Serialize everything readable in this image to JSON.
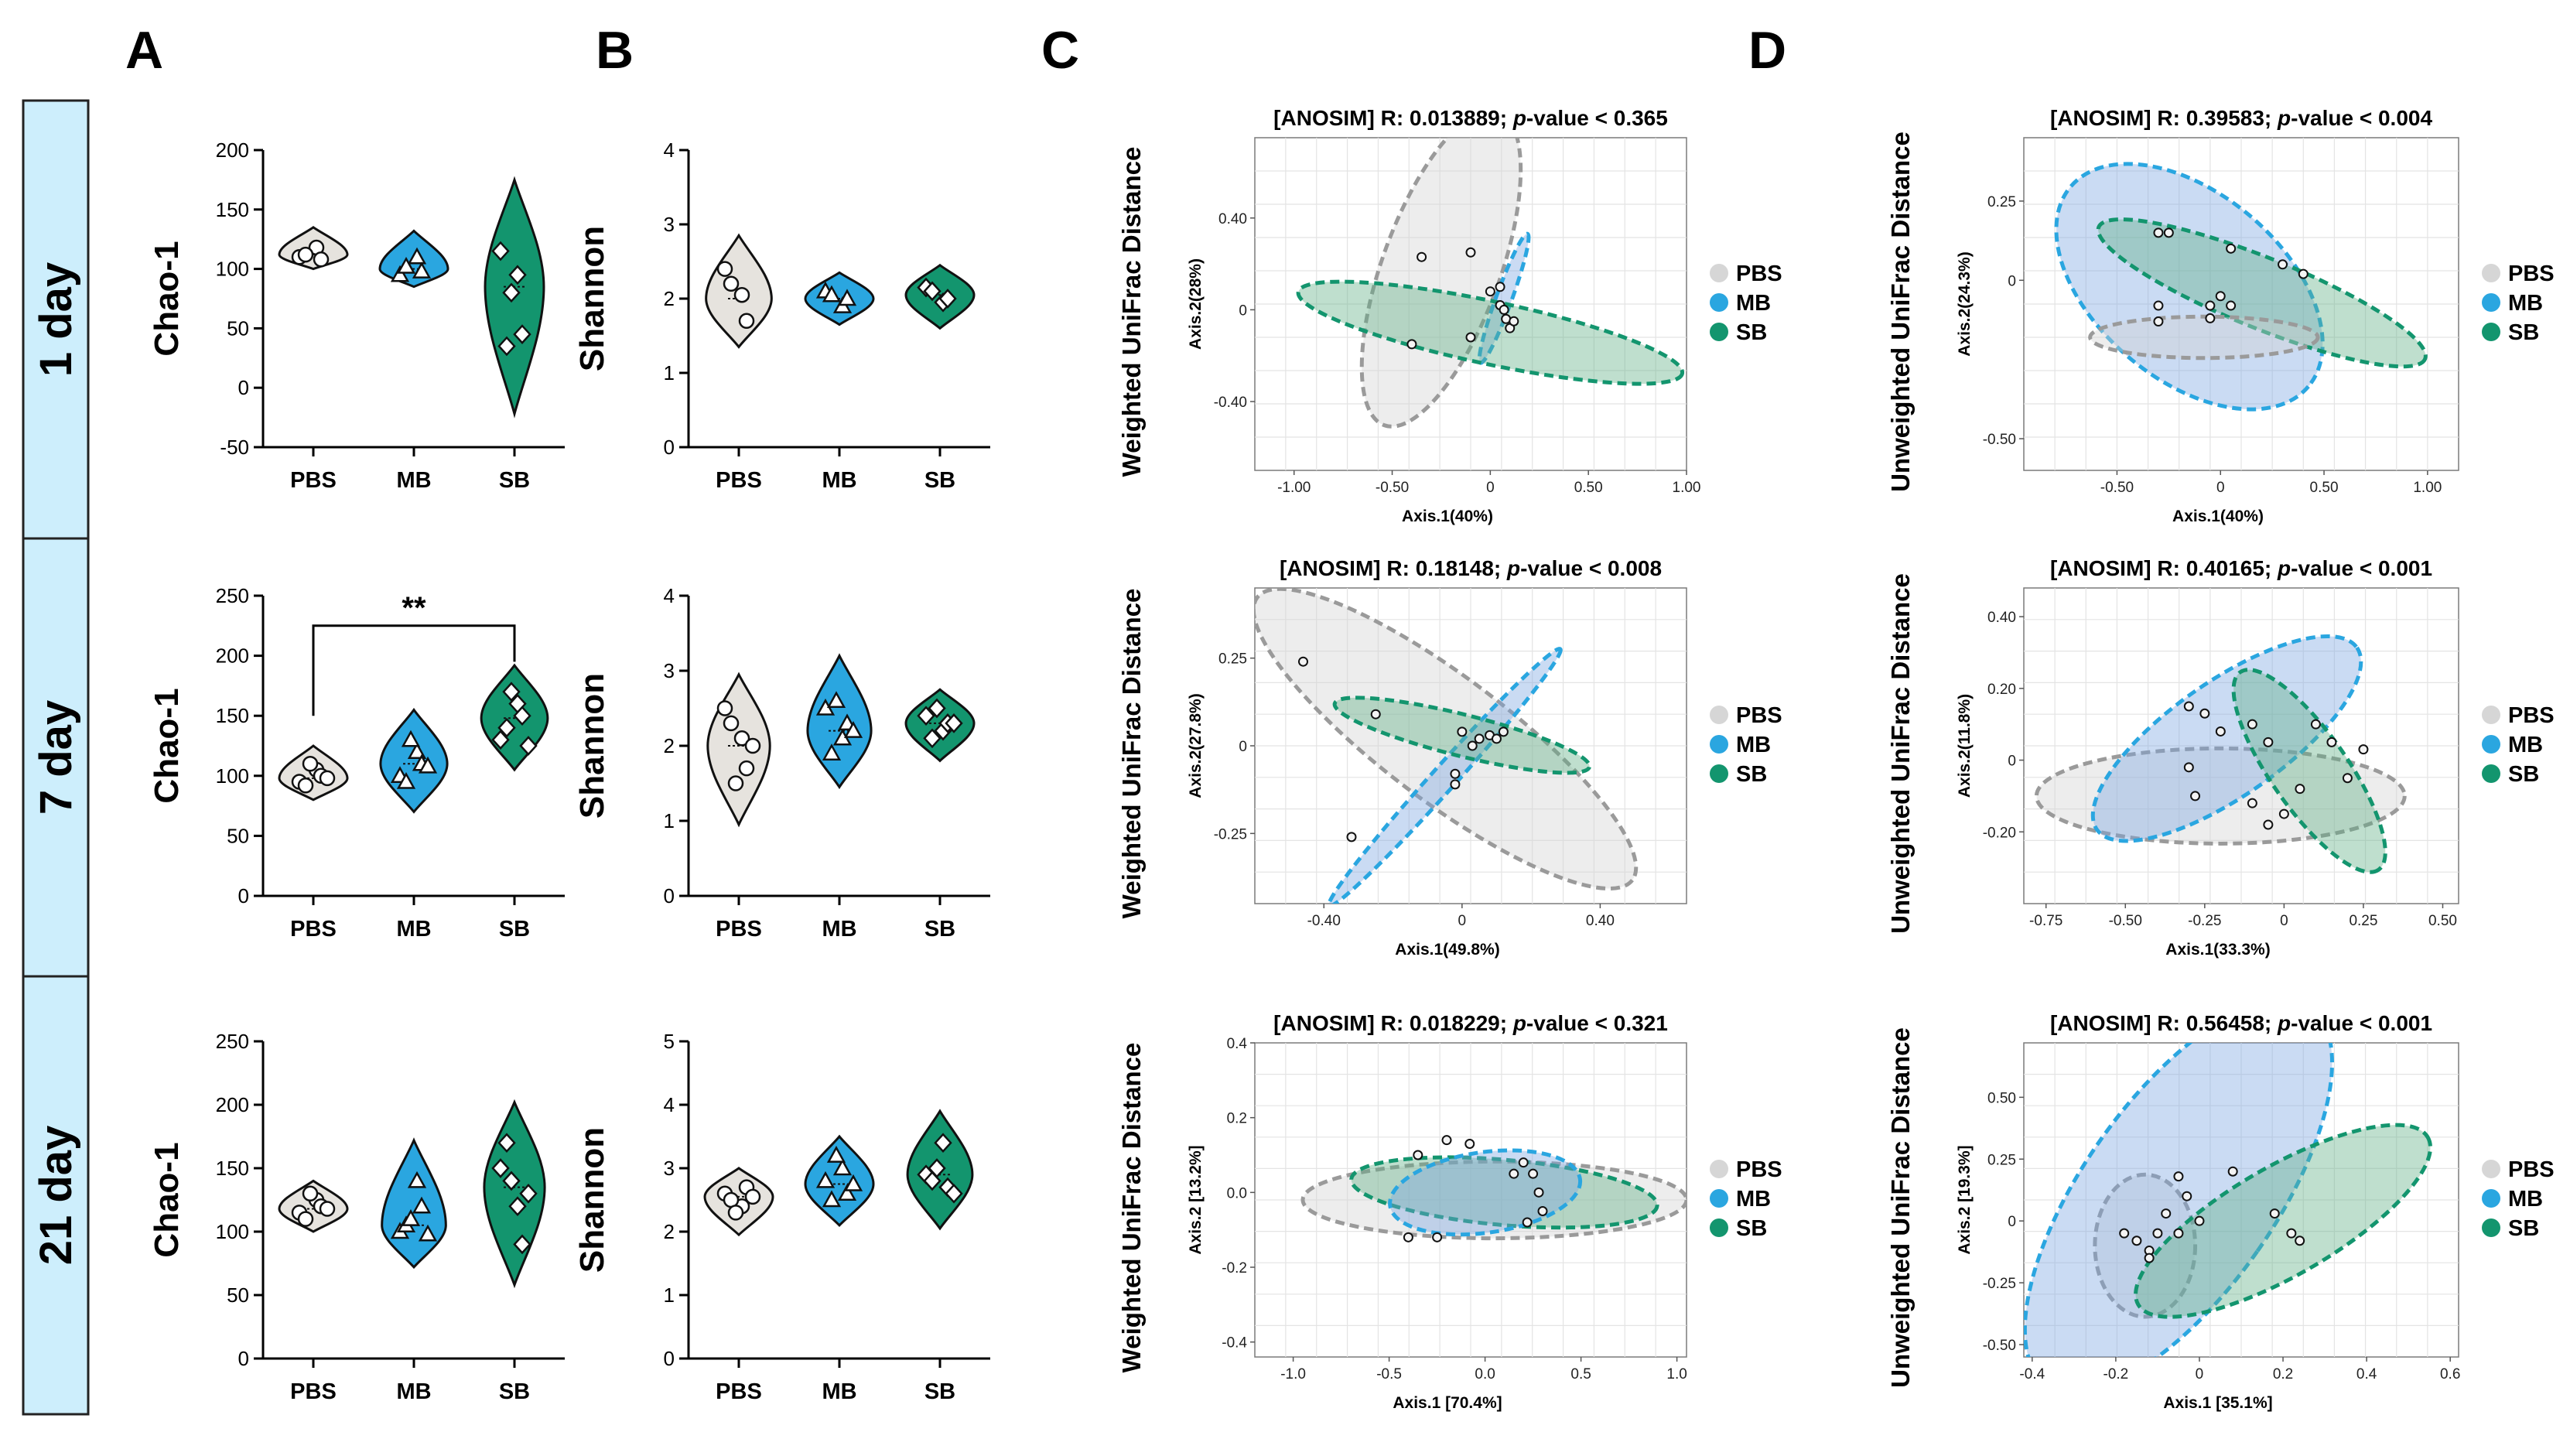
{
  "figure": {
    "panel_letters": [
      "A",
      "B",
      "C",
      "D"
    ],
    "row_labels": [
      "1 day",
      "7 day",
      "21 day"
    ],
    "colors": {
      "PBS": "#e6e3de",
      "MB": "#2aa6e0",
      "SB": "#13956e",
      "row_bg": "#cdeefc"
    },
    "legend": [
      "PBS",
      "MB",
      "SB"
    ]
  },
  "chart_data": [
    {
      "type": "violin",
      "panel": "A",
      "row": 0,
      "ylabel": "Chao-1",
      "ylim": [
        -50,
        200
      ],
      "yticks": [
        -50,
        0,
        50,
        100,
        150,
        200
      ],
      "categories": [
        "PBS",
        "MB",
        "SB"
      ],
      "series": [
        {
          "name": "PBS",
          "range": [
            100,
            135
          ],
          "center": 112,
          "values": [
            110,
            118,
            108,
            112
          ],
          "marker": "circle"
        },
        {
          "name": "MB",
          "range": [
            85,
            132
          ],
          "center": 100,
          "values": [
            95,
            110,
            98,
            102
          ],
          "marker": "triangle"
        },
        {
          "name": "SB",
          "range": [
            -22,
            175
          ],
          "center": 85,
          "values": [
            115,
            95,
            45,
            35,
            80
          ],
          "marker": "diamond"
        }
      ],
      "significance": null
    },
    {
      "type": "violin",
      "panel": "A",
      "row": 1,
      "ylabel": "Chao-1",
      "ylim": [
        0,
        250
      ],
      "yticks": [
        0,
        50,
        100,
        150,
        200,
        250
      ],
      "categories": [
        "PBS",
        "MB",
        "SB"
      ],
      "series": [
        {
          "name": "PBS",
          "range": [
            80,
            125
          ],
          "center": 98,
          "values": [
            95,
            105,
            100,
            92,
            110,
            98
          ],
          "marker": "circle"
        },
        {
          "name": "MB",
          "range": [
            70,
            155
          ],
          "center": 110,
          "values": [
            100,
            120,
            110,
            95,
            130,
            108
          ],
          "marker": "triangle"
        },
        {
          "name": "SB",
          "range": [
            105,
            192
          ],
          "center": 148,
          "values": [
            130,
            160,
            150,
            140,
            170,
            125
          ],
          "marker": "diamond"
        }
      ],
      "significance": {
        "from": "PBS",
        "to": "SB",
        "label": "**",
        "y": 225
      }
    },
    {
      "type": "violin",
      "panel": "A",
      "row": 2,
      "ylabel": "Chao-1",
      "ylim": [
        0,
        250
      ],
      "yticks": [
        0,
        50,
        100,
        150,
        200,
        250
      ],
      "categories": [
        "PBS",
        "MB",
        "SB"
      ],
      "series": [
        {
          "name": "PBS",
          "range": [
            100,
            140
          ],
          "center": 118,
          "values": [
            115,
            125,
            120,
            110,
            130,
            118
          ],
          "marker": "circle"
        },
        {
          "name": "MB",
          "range": [
            72,
            172
          ],
          "center": 105,
          "values": [
            100,
            140,
            120,
            105,
            110,
            98
          ],
          "marker": "triangle"
        },
        {
          "name": "SB",
          "range": [
            58,
            202
          ],
          "center": 135,
          "values": [
            150,
            120,
            90,
            170,
            140,
            130
          ],
          "marker": "diamond"
        }
      ],
      "significance": null
    },
    {
      "type": "violin",
      "panel": "B",
      "row": 0,
      "ylabel": "Shannon",
      "ylim": [
        0,
        4
      ],
      "yticks": [
        0,
        1,
        2,
        3,
        4
      ],
      "categories": [
        "PBS",
        "MB",
        "SB"
      ],
      "series": [
        {
          "name": "PBS",
          "range": [
            1.35,
            2.85
          ],
          "center": 2.0,
          "values": [
            2.4,
            2.05,
            1.7,
            2.2
          ],
          "marker": "circle"
        },
        {
          "name": "MB",
          "range": [
            1.65,
            2.35
          ],
          "center": 2.0,
          "values": [
            2.1,
            1.9,
            2.0,
            2.05
          ],
          "marker": "triangle"
        },
        {
          "name": "SB",
          "range": [
            1.6,
            2.45
          ],
          "center": 2.05,
          "values": [
            2.15,
            1.95,
            2.0,
            2.1
          ],
          "marker": "diamond"
        }
      ],
      "significance": null
    },
    {
      "type": "violin",
      "panel": "B",
      "row": 1,
      "ylabel": "Shannon",
      "ylim": [
        0,
        4
      ],
      "yticks": [
        0,
        1,
        2,
        3,
        4
      ],
      "categories": [
        "PBS",
        "MB",
        "SB"
      ],
      "series": [
        {
          "name": "PBS",
          "range": [
            0.95,
            2.95
          ],
          "center": 2.0,
          "values": [
            2.5,
            2.1,
            1.7,
            2.3,
            1.5,
            2.0
          ],
          "marker": "circle"
        },
        {
          "name": "MB",
          "range": [
            1.45,
            3.2
          ],
          "center": 2.2,
          "values": [
            2.5,
            2.1,
            2.3,
            1.9,
            2.6,
            2.2
          ],
          "marker": "triangle"
        },
        {
          "name": "SB",
          "range": [
            1.8,
            2.75
          ],
          "center": 2.3,
          "values": [
            2.4,
            2.2,
            2.3,
            2.1,
            2.5,
            2.3
          ],
          "marker": "diamond"
        }
      ],
      "significance": null
    },
    {
      "type": "violin",
      "panel": "B",
      "row": 2,
      "ylabel": "Shannon",
      "ylim": [
        0,
        5
      ],
      "yticks": [
        0,
        1,
        2,
        3,
        4,
        5
      ],
      "categories": [
        "PBS",
        "MB",
        "SB"
      ],
      "series": [
        {
          "name": "PBS",
          "range": [
            1.95,
            3.0
          ],
          "center": 2.55,
          "values": [
            2.6,
            2.4,
            2.7,
            2.5,
            2.3,
            2.55
          ],
          "marker": "circle"
        },
        {
          "name": "MB",
          "range": [
            2.1,
            3.5
          ],
          "center": 2.75,
          "values": [
            2.8,
            3.0,
            2.6,
            2.5,
            3.2,
            2.75
          ],
          "marker": "triangle"
        },
        {
          "name": "SB",
          "range": [
            2.05,
            3.9
          ],
          "center": 2.9,
          "values": [
            2.9,
            3.4,
            2.7,
            2.8,
            3.0,
            2.6
          ],
          "marker": "diamond"
        }
      ],
      "significance": null
    },
    {
      "type": "scatter",
      "panel": "C",
      "row": 0,
      "title": "[ANOSIM] R: 0.013889; ",
      "title_p": "p",
      "title_rest": "-value < 0.365",
      "side_label": "Weighted UniFrac Distance",
      "xlabel": "Axis.1(40%)",
      "ylabel": "Axis.2(28%)",
      "xlim": [
        -1.2,
        1.0
      ],
      "ylim": [
        -0.7,
        0.75
      ],
      "xticks": [
        -1.0,
        -0.5,
        0,
        0.5,
        1.0
      ],
      "xticklabels": [
        "-1.00",
        "-0.50",
        "0",
        "0.50",
        "1.00"
      ],
      "yticks": [
        0.4,
        0,
        -0.4
      ],
      "yticklabels": [
        "0.40",
        "0",
        "-0.40"
      ],
      "ellipses": [
        {
          "name": "PBS",
          "cx": -0.25,
          "cy": 0.18,
          "rx": 0.85,
          "ry": 0.3,
          "angle": -70
        },
        {
          "name": "MB",
          "cx": 0.07,
          "cy": 0.05,
          "rx": 0.35,
          "ry": 0.04,
          "angle": -70
        },
        {
          "name": "SB",
          "cx": 0.0,
          "cy": -0.1,
          "rx": 1.0,
          "ry": 0.16,
          "angle": 12
        }
      ],
      "points": [
        [
          -0.35,
          0.23
        ],
        [
          -0.1,
          0.25
        ],
        [
          -0.1,
          -0.12
        ],
        [
          -0.4,
          -0.15
        ],
        [
          0.0,
          0.08
        ],
        [
          0.05,
          0.02
        ],
        [
          0.08,
          -0.04
        ],
        [
          0.1,
          -0.08
        ],
        [
          0.12,
          -0.05
        ],
        [
          0.05,
          0.1
        ],
        [
          0.07,
          0.0
        ]
      ]
    },
    {
      "type": "scatter",
      "panel": "C",
      "row": 1,
      "title": "[ANOSIM] R: 0.18148; ",
      "title_p": "p",
      "title_rest": "-value < 0.008",
      "side_label": "Weighted UniFrac Distance",
      "xlabel": "Axis.1(49.8%)",
      "ylabel": "Axis.2(27.8%)",
      "xlim": [
        -0.6,
        0.65
      ],
      "ylim": [
        -0.45,
        0.45
      ],
      "xticks": [
        -0.4,
        0,
        0.4
      ],
      "xticklabels": [
        "-0.40",
        "0",
        "0.40"
      ],
      "yticks": [
        0.25,
        0,
        -0.25
      ],
      "yticklabels": [
        "0.25",
        "0",
        "-0.25"
      ],
      "ellipses": [
        {
          "name": "PBS",
          "cx": -0.05,
          "cy": 0.02,
          "rx": 0.68,
          "ry": 0.18,
          "angle": 37
        },
        {
          "name": "MB",
          "cx": -0.05,
          "cy": -0.09,
          "rx": 0.5,
          "ry": 0.035,
          "angle": -48
        },
        {
          "name": "SB",
          "cx": 0.0,
          "cy": 0.03,
          "rx": 0.38,
          "ry": 0.06,
          "angle": 14
        }
      ],
      "points": [
        [
          -0.46,
          0.24
        ],
        [
          -0.32,
          -0.26
        ],
        [
          -0.25,
          0.09
        ],
        [
          0.0,
          0.04
        ],
        [
          0.05,
          0.02
        ],
        [
          0.08,
          0.03
        ],
        [
          0.1,
          0.02
        ],
        [
          0.12,
          0.04
        ],
        [
          -0.02,
          -0.08
        ],
        [
          -0.02,
          -0.11
        ],
        [
          0.03,
          0.0
        ]
      ]
    },
    {
      "type": "scatter",
      "panel": "C",
      "row": 2,
      "title": "[ANOSIM] R: 0.018229; ",
      "title_p": "p",
      "title_rest": "-value < 0.321",
      "side_label": "Weighted UniFrac Distance",
      "xlabel": "Axis.1   [70.4%]",
      "ylabel": "Axis.2   [13.2%]",
      "xlim": [
        -1.2,
        1.05
      ],
      "ylim": [
        -0.44,
        0.4
      ],
      "xticks": [
        -1.0,
        -0.5,
        0,
        0.5,
        1.0
      ],
      "xticklabels": [
        "-1.0",
        "-0.5",
        "0.0",
        "0.5",
        "1.0"
      ],
      "yticks": [
        0.4,
        0.2,
        0,
        -0.2,
        -0.4
      ],
      "yticklabels": [
        "0.4",
        "0.2",
        "0.0",
        "-0.2",
        "-0.4"
      ],
      "ellipses": [
        {
          "name": "PBS",
          "cx": 0.05,
          "cy": -0.02,
          "rx": 1.0,
          "ry": 0.2,
          "angle": 0
        },
        {
          "name": "SB",
          "cx": 0.1,
          "cy": 0.0,
          "rx": 0.8,
          "ry": 0.17,
          "angle": 5
        },
        {
          "name": "MB",
          "cx": 0.0,
          "cy": 0.0,
          "rx": 0.5,
          "ry": 0.21,
          "angle": -8
        }
      ],
      "points": [
        [
          -0.35,
          0.1
        ],
        [
          -0.2,
          0.14
        ],
        [
          -0.08,
          0.13
        ],
        [
          0.2,
          0.08
        ],
        [
          0.25,
          0.05
        ],
        [
          0.28,
          0.0
        ],
        [
          0.15,
          0.05
        ],
        [
          -0.25,
          -0.12
        ],
        [
          -0.4,
          -0.12
        ],
        [
          0.22,
          -0.08
        ],
        [
          0.3,
          -0.05
        ]
      ]
    },
    {
      "type": "scatter",
      "panel": "D",
      "row": 0,
      "title": "[ANOSIM] R: 0.39583; ",
      "title_p": "p",
      "title_rest": "-value < 0.004",
      "side_label": "Unweighted UniFrac Distance",
      "xlabel": "Axis.1(40%)",
      "ylabel": "Axis.2(24.3%)",
      "xlim": [
        -0.95,
        1.15
      ],
      "ylim": [
        -0.6,
        0.45
      ],
      "xticks": [
        -0.5,
        0,
        0.5,
        1.0
      ],
      "xticklabels": [
        "-0.50",
        "0",
        "0.50",
        "1.00"
      ],
      "yticks": [
        0.25,
        0,
        -0.5
      ],
      "yticklabels": [
        "0.25",
        "0",
        "-0.50"
      ],
      "ellipses": [
        {
          "name": "MB",
          "cx": -0.15,
          "cy": -0.02,
          "rx": 0.75,
          "ry": 0.45,
          "angle": 40
        },
        {
          "name": "SB",
          "cx": 0.2,
          "cy": -0.04,
          "rx": 0.85,
          "ry": 0.17,
          "angle": 22
        },
        {
          "name": "PBS",
          "cx": -0.08,
          "cy": -0.18,
          "rx": 0.55,
          "ry": 0.1,
          "angle": 0
        }
      ],
      "points": [
        [
          -0.3,
          0.15
        ],
        [
          -0.25,
          0.15
        ],
        [
          -0.3,
          -0.08
        ],
        [
          -0.3,
          -0.13
        ],
        [
          -0.05,
          -0.08
        ],
        [
          0.0,
          -0.05
        ],
        [
          -0.05,
          -0.12
        ],
        [
          0.05,
          0.1
        ],
        [
          0.05,
          -0.08
        ],
        [
          0.3,
          0.05
        ],
        [
          0.4,
          0.02
        ]
      ]
    },
    {
      "type": "scatter",
      "panel": "D",
      "row": 1,
      "title": "[ANOSIM] R: 0.40165; ",
      "title_p": "p",
      "title_rest": "-value < 0.001",
      "side_label": "Unweighted UniFrac Distance",
      "xlabel": "Axis.1(33.3%)",
      "ylabel": "Axis.2(11.8%)",
      "xlim": [
        -0.82,
        0.55
      ],
      "ylim": [
        -0.4,
        0.48
      ],
      "xticks": [
        -0.75,
        -0.5,
        -0.25,
        0,
        0.25,
        0.5
      ],
      "xticklabels": [
        "-0.75",
        "-0.50",
        "-0.25",
        "0",
        "0.25",
        "0.50"
      ],
      "yticks": [
        0.4,
        0.2,
        0,
        -0.2
      ],
      "yticklabels": [
        "0.40",
        "0.20",
        "0",
        "-0.20"
      ],
      "ellipses": [
        {
          "name": "PBS",
          "cx": -0.2,
          "cy": -0.1,
          "rx": 0.58,
          "ry": 0.15,
          "angle": 0
        },
        {
          "name": "MB",
          "cx": -0.18,
          "cy": 0.06,
          "rx": 0.5,
          "ry": 0.18,
          "angle": -35
        },
        {
          "name": "SB",
          "cx": 0.08,
          "cy": -0.03,
          "rx": 0.38,
          "ry": 0.12,
          "angle": 55
        }
      ],
      "points": [
        [
          -0.3,
          0.15
        ],
        [
          -0.25,
          0.13
        ],
        [
          -0.2,
          0.08
        ],
        [
          -0.1,
          0.1
        ],
        [
          -0.05,
          0.05
        ],
        [
          -0.3,
          -0.02
        ],
        [
          -0.28,
          -0.1
        ],
        [
          -0.1,
          -0.12
        ],
        [
          0.0,
          -0.15
        ],
        [
          0.05,
          -0.08
        ],
        [
          0.1,
          0.1
        ],
        [
          0.15,
          0.05
        ],
        [
          0.2,
          -0.05
        ],
        [
          0.25,
          0.03
        ],
        [
          -0.05,
          -0.18
        ]
      ]
    },
    {
      "type": "scatter",
      "panel": "D",
      "row": 2,
      "title": "[ANOSIM] R: 0.56458; ",
      "title_p": "p",
      "title_rest": "-value < 0.001",
      "side_label": "Unweighted UniFrac Distance",
      "xlabel": "Axis.1   [35.1%]",
      "ylabel": "Axis.2   [19.3%]",
      "xlim": [
        -0.42,
        0.62
      ],
      "ylim": [
        -0.55,
        0.72
      ],
      "xticks": [
        -0.4,
        -0.2,
        0,
        0.2,
        0.4,
        0.6
      ],
      "xticklabels": [
        "-0.4",
        "-0.2",
        "0",
        "0.2",
        "0.4",
        "0.6"
      ],
      "yticks": [
        0.5,
        0.25,
        0,
        -0.25,
        -0.5
      ],
      "yticklabels": [
        "0.50",
        "0.25",
        "0",
        "-0.25",
        "-0.50"
      ],
      "ellipses": [
        {
          "name": "PBS",
          "cx": -0.13,
          "cy": -0.1,
          "rx": 0.12,
          "ry": 0.17,
          "angle": 0
        },
        {
          "name": "MB",
          "cx": -0.05,
          "cy": 0.1,
          "rx": 0.23,
          "ry": 0.55,
          "angle": 35
        },
        {
          "name": "SB",
          "cx": 0.2,
          "cy": 0.0,
          "rx": 0.4,
          "ry": 0.13,
          "angle": -30
        }
      ],
      "points": [
        [
          -0.18,
          -0.05
        ],
        [
          -0.15,
          -0.08
        ],
        [
          -0.1,
          -0.05
        ],
        [
          -0.05,
          -0.05
        ],
        [
          -0.12,
          -0.12
        ],
        [
          -0.08,
          0.03
        ],
        [
          -0.03,
          0.1
        ],
        [
          0.0,
          0.0
        ],
        [
          0.08,
          0.2
        ],
        [
          0.18,
          0.03
        ],
        [
          0.22,
          -0.05
        ],
        [
          0.24,
          -0.08
        ],
        [
          -0.05,
          0.18
        ],
        [
          -0.12,
          -0.15
        ]
      ]
    }
  ]
}
